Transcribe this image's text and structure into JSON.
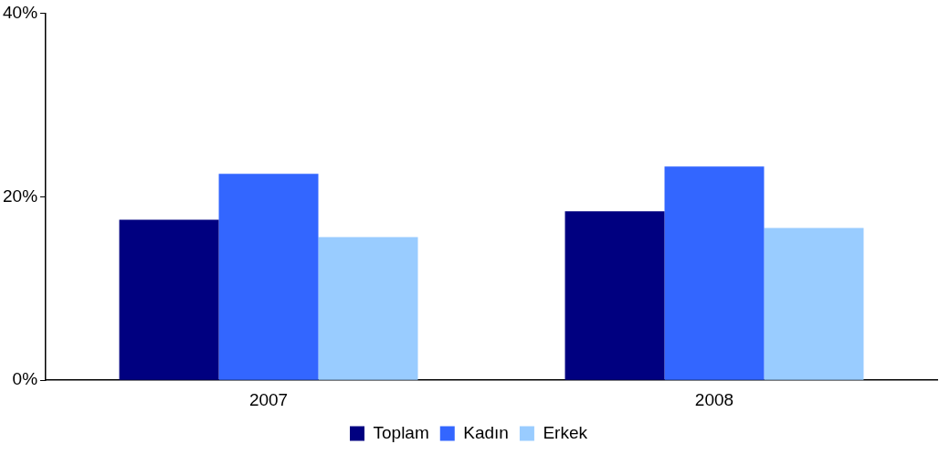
{
  "chart_data": {
    "type": "bar",
    "categories": [
      "2007",
      "2008"
    ],
    "series": [
      {
        "name": "Toplam",
        "color": "#000080",
        "values": [
          17.5,
          18.4
        ]
      },
      {
        "name": "Kadın",
        "color": "#3366ff",
        "values": [
          22.5,
          23.3
        ]
      },
      {
        "name": "Erkek",
        "color": "#99ccff",
        "values": [
          15.6,
          16.6
        ]
      }
    ],
    "ylim": [
      0,
      40
    ],
    "yticks": [
      {
        "value": 0,
        "label": "0%"
      },
      {
        "value": 20,
        "label": "20%"
      },
      {
        "value": 40,
        "label": "40%"
      }
    ],
    "grid": false,
    "legend": "bottom"
  }
}
